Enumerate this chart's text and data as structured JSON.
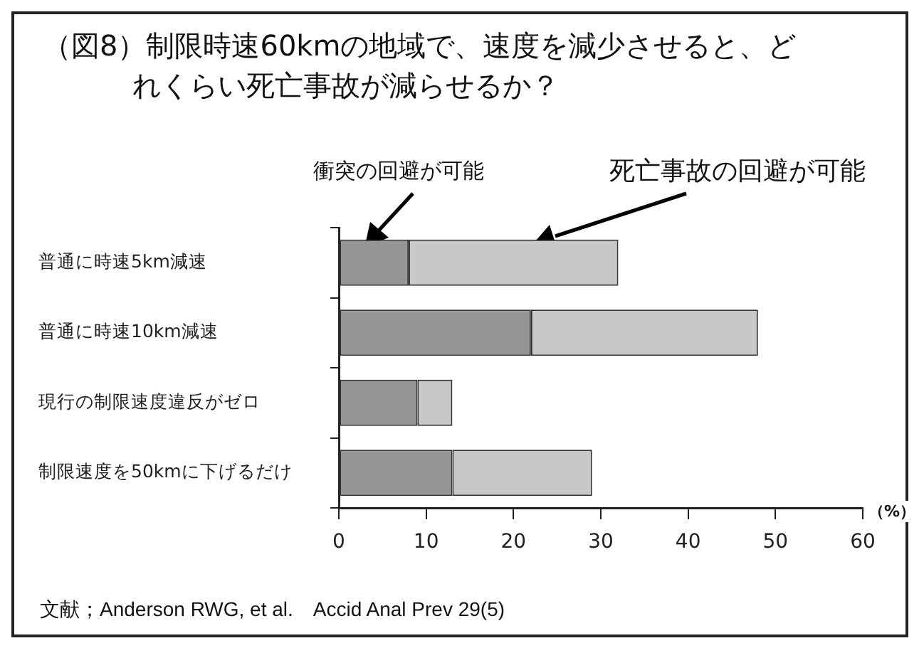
{
  "chart_data": {
    "type": "bar",
    "orientation": "horizontal",
    "stacked": true,
    "title": "（図8）制限時速60kmの地域で、速度を減少させると、どれくらい死亡事故が減らせるか？",
    "xlabel": "（%）",
    "categories": [
      "普通に時速5km減速",
      "普通に時速10km減速",
      "現行の制限速度違反がゼロ",
      "制限速度を50kmに下げるだけ"
    ],
    "series": [
      {
        "name": "衝突の回避が可能",
        "color": "#959595",
        "values": [
          8,
          22,
          9,
          13
        ]
      },
      {
        "name": "死亡事故の回避が可能",
        "color": "#c8c8c8",
        "values": [
          24,
          26,
          4,
          16
        ]
      }
    ],
    "xlim": [
      0,
      60
    ],
    "xticks": [
      0,
      10,
      20,
      30,
      40,
      50,
      60
    ],
    "grid": false,
    "legend": false,
    "annotations": [
      "文献；Anderson RWG, et al.　Accid Anal Prev 29(5)"
    ]
  }
}
